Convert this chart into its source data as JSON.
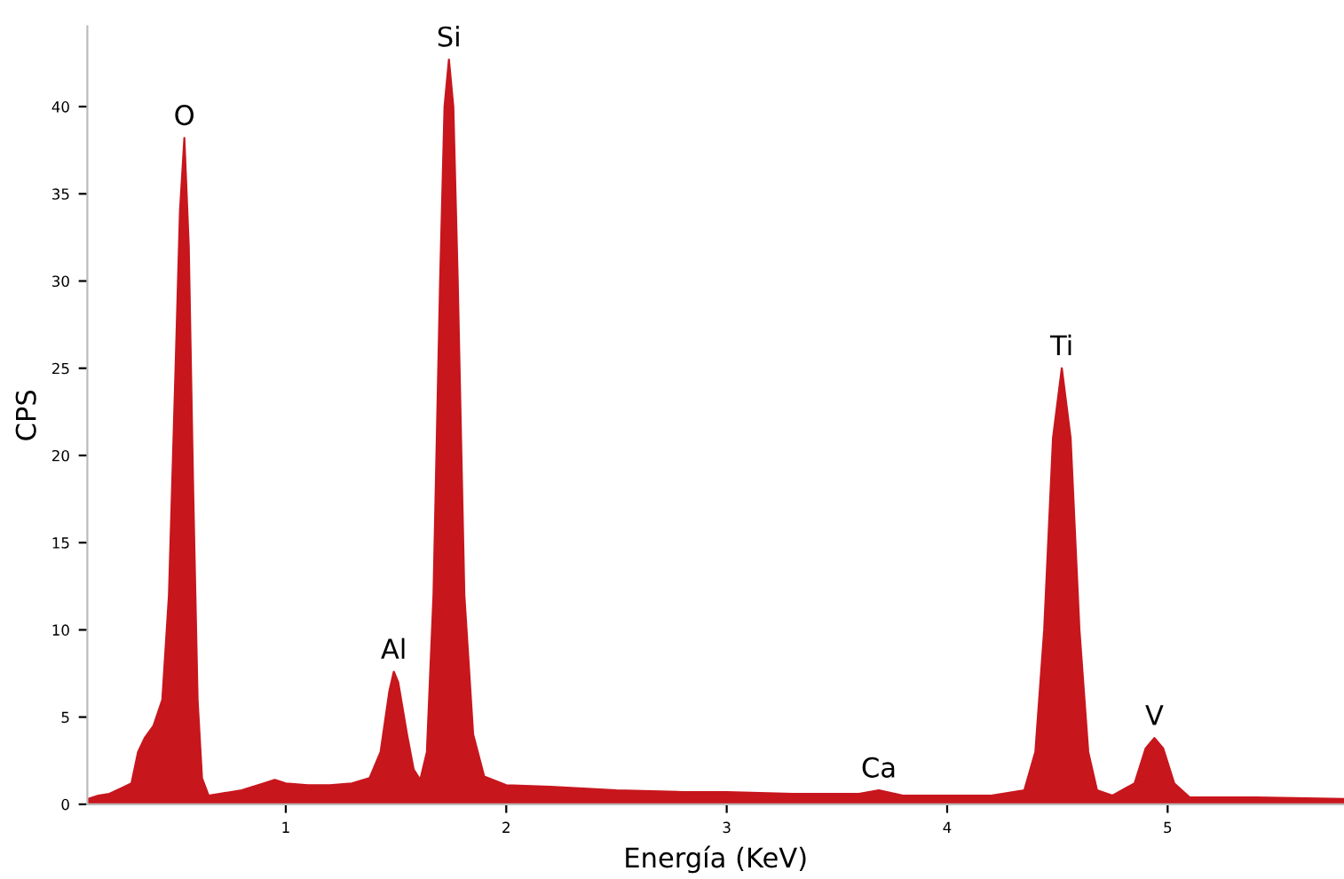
{
  "chart_data": {
    "type": "area",
    "xlabel": "Energía (KeV)",
    "ylabel": "CPS",
    "grid": false,
    "legend": false,
    "xlim": [
      0.1,
      5.8
    ],
    "ylim": [
      0,
      44.6
    ],
    "xticks": [
      1,
      2,
      3,
      4,
      5
    ],
    "yticks": [
      0,
      5,
      10,
      15,
      20,
      25,
      30,
      35,
      40
    ],
    "series": [
      {
        "color": "#c8161d",
        "x": [
          0.1,
          0.15,
          0.2,
          0.25,
          0.3,
          0.33,
          0.36,
          0.4,
          0.44,
          0.47,
          0.5,
          0.52,
          0.54,
          0.56,
          0.58,
          0.6,
          0.62,
          0.65,
          0.7,
          0.8,
          0.9,
          0.95,
          1.0,
          1.1,
          1.2,
          1.3,
          1.38,
          1.43,
          1.47,
          1.49,
          1.51,
          1.55,
          1.58,
          1.61,
          1.64,
          1.67,
          1.7,
          1.72,
          1.74,
          1.76,
          1.78,
          1.81,
          1.85,
          1.9,
          2.0,
          2.2,
          2.5,
          2.8,
          3.0,
          3.3,
          3.6,
          3.69,
          3.8,
          4.0,
          4.2,
          4.35,
          4.4,
          4.44,
          4.48,
          4.52,
          4.56,
          4.6,
          4.64,
          4.68,
          4.75,
          4.85,
          4.9,
          4.94,
          4.98,
          5.03,
          5.1,
          5.4,
          5.8
        ],
        "values": [
          0.3,
          0.5,
          0.6,
          0.9,
          1.2,
          3.0,
          3.8,
          4.5,
          6,
          12,
          25,
          34,
          38.2,
          32,
          18,
          6,
          1.5,
          0.5,
          0.6,
          0.8,
          1.2,
          1.4,
          1.2,
          1.1,
          1.1,
          1.2,
          1.5,
          3,
          6.5,
          7.6,
          7,
          4,
          2,
          1.4,
          3,
          12,
          30,
          40,
          42.7,
          40,
          30,
          12,
          4,
          1.6,
          1.1,
          1.0,
          0.8,
          0.7,
          0.7,
          0.6,
          0.6,
          0.8,
          0.5,
          0.5,
          0.5,
          0.8,
          3,
          10,
          21,
          25,
          21,
          10,
          3,
          0.8,
          0.5,
          1.2,
          3.2,
          3.8,
          3.2,
          1.2,
          0.4,
          0.4,
          0.3
        ]
      }
    ],
    "annotations": [
      {
        "text": "O",
        "x": 0.54,
        "y": 38.2
      },
      {
        "text": "Si",
        "x": 1.74,
        "y": 42.7
      },
      {
        "text": "Al",
        "x": 1.49,
        "y": 7.6
      },
      {
        "text": "Ca",
        "x": 3.69,
        "y": 0.8
      },
      {
        "text": "Ti",
        "x": 4.52,
        "y": 25
      },
      {
        "text": "V",
        "x": 4.94,
        "y": 3.8
      }
    ]
  }
}
